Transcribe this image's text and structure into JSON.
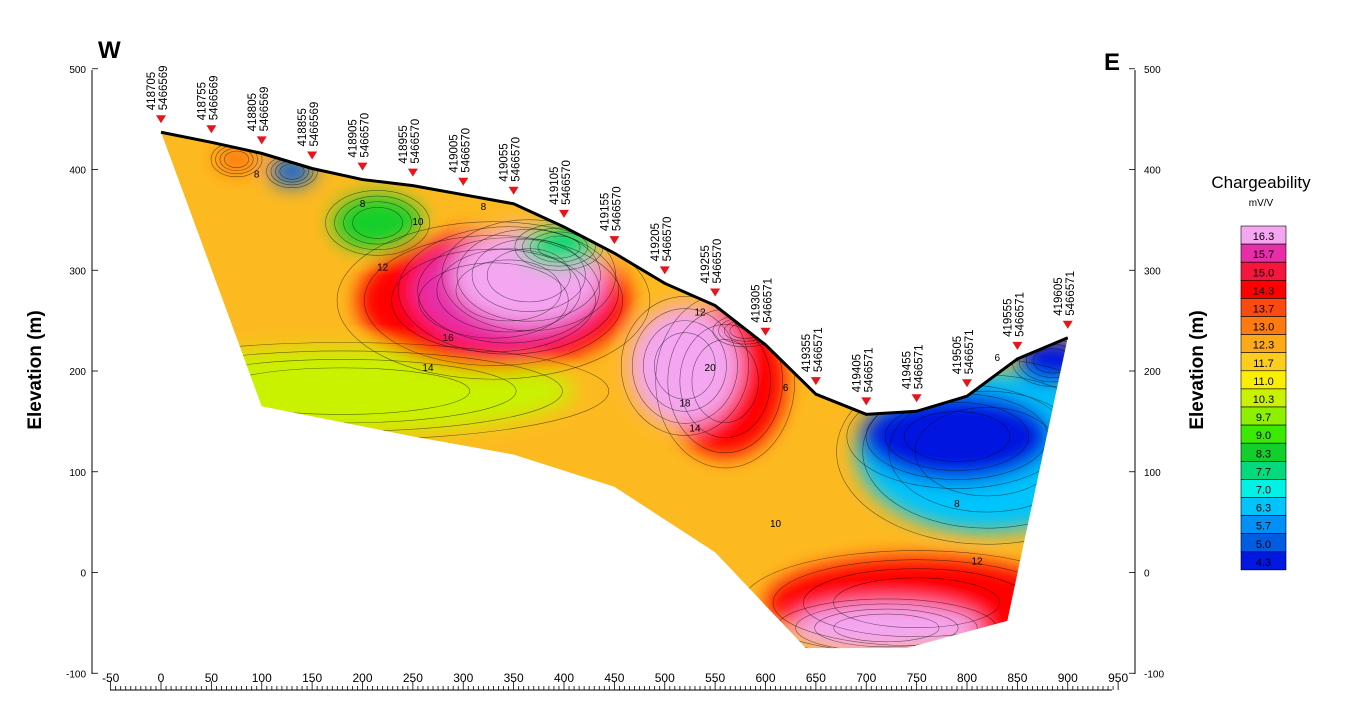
{
  "chart_data": {
    "type": "heatmap",
    "title": "",
    "direction_left": "W",
    "direction_right": "E",
    "ylabel_left": "Elevation (m)",
    "ylabel_right": "Elevation (m)",
    "xlim": [
      -50,
      950
    ],
    "ylim": [
      -100,
      500
    ],
    "x_ticks": [
      -50,
      0,
      50,
      100,
      150,
      200,
      250,
      300,
      350,
      400,
      450,
      500,
      550,
      600,
      650,
      700,
      750,
      800,
      850,
      900,
      950
    ],
    "y_ticks_left": [
      -100,
      0,
      100,
      200,
      300,
      400,
      500
    ],
    "y_ticks_right": [
      -100,
      0,
      100,
      200,
      300,
      400,
      500
    ],
    "surface_profile": [
      {
        "x": 0,
        "y": 437
      },
      {
        "x": 50,
        "y": 427
      },
      {
        "x": 100,
        "y": 416
      },
      {
        "x": 150,
        "y": 401
      },
      {
        "x": 200,
        "y": 390
      },
      {
        "x": 250,
        "y": 384
      },
      {
        "x": 300,
        "y": 375
      },
      {
        "x": 350,
        "y": 366
      },
      {
        "x": 400,
        "y": 343
      },
      {
        "x": 450,
        "y": 317
      },
      {
        "x": 500,
        "y": 287
      },
      {
        "x": 550,
        "y": 265
      },
      {
        "x": 600,
        "y": 226
      },
      {
        "x": 650,
        "y": 177
      },
      {
        "x": 700,
        "y": 157
      },
      {
        "x": 750,
        "y": 160
      },
      {
        "x": 800,
        "y": 175
      },
      {
        "x": 850,
        "y": 212
      },
      {
        "x": 900,
        "y": 233
      }
    ],
    "stations": [
      {
        "x": 0,
        "easting": "418705",
        "northing": "5466569"
      },
      {
        "x": 50,
        "easting": "418755",
        "northing": "5466569"
      },
      {
        "x": 100,
        "easting": "418805",
        "northing": "5466569"
      },
      {
        "x": 150,
        "easting": "418855",
        "northing": "5466569"
      },
      {
        "x": 200,
        "easting": "418905",
        "northing": "5466570"
      },
      {
        "x": 250,
        "easting": "418955",
        "northing": "5466570"
      },
      {
        "x": 300,
        "easting": "419005",
        "northing": "5466570"
      },
      {
        "x": 350,
        "easting": "419055",
        "northing": "5466570"
      },
      {
        "x": 400,
        "easting": "419105",
        "northing": "5466570"
      },
      {
        "x": 450,
        "easting": "419155",
        "northing": "5466570"
      },
      {
        "x": 500,
        "easting": "419205",
        "northing": "5466570"
      },
      {
        "x": 550,
        "easting": "419255",
        "northing": "5466570"
      },
      {
        "x": 600,
        "easting": "419305",
        "northing": "5466571"
      },
      {
        "x": 650,
        "easting": "419355",
        "northing": "5466571"
      },
      {
        "x": 700,
        "easting": "419405",
        "northing": "5466571"
      },
      {
        "x": 750,
        "easting": "419455",
        "northing": "5466571"
      },
      {
        "x": 800,
        "easting": "419505",
        "northing": "5466571"
      },
      {
        "x": 850,
        "easting": "419555",
        "northing": "5466571"
      },
      {
        "x": 900,
        "easting": "419605",
        "northing": "5466571"
      }
    ],
    "section_bottom": [
      {
        "x": 100,
        "y": 165
      },
      {
        "x": 250,
        "y": 135
      },
      {
        "x": 350,
        "y": 117
      },
      {
        "x": 450,
        "y": 85
      },
      {
        "x": 550,
        "y": 20
      },
      {
        "x": 640,
        "y": -75
      },
      {
        "x": 740,
        "y": -75
      },
      {
        "x": 840,
        "y": -48
      }
    ],
    "anomalies": [
      {
        "x": 180,
        "y": 180,
        "rx": 230,
        "ry": 42,
        "value": 10.3
      },
      {
        "x": 330,
        "y": 270,
        "rx": 135,
        "ry": 68,
        "value": 14.3
      },
      {
        "x": 345,
        "y": 280,
        "rx": 95,
        "ry": 55,
        "value": 15.7
      },
      {
        "x": 365,
        "y": 295,
        "rx": 75,
        "ry": 48,
        "value": 16.3
      },
      {
        "x": 215,
        "y": 347,
        "rx": 45,
        "ry": 28,
        "value": 8.3
      },
      {
        "x": 75,
        "y": 410,
        "rx": 22,
        "ry": 15,
        "value": 13.0
      },
      {
        "x": 130,
        "y": 398,
        "rx": 22,
        "ry": 14,
        "value": 5.0
      },
      {
        "x": 395,
        "y": 323,
        "rx": 38,
        "ry": 20,
        "value": 7.7
      },
      {
        "x": 580,
        "y": 240,
        "rx": 28,
        "ry": 14,
        "value": 5.0
      },
      {
        "x": 560,
        "y": 190,
        "rx": 60,
        "ry": 75,
        "value": 14.3
      },
      {
        "x": 520,
        "y": 205,
        "rx": 55,
        "ry": 60,
        "value": 16.3
      },
      {
        "x": 820,
        "y": 120,
        "rx": 130,
        "ry": 80,
        "value": 6.3
      },
      {
        "x": 790,
        "y": 135,
        "rx": 95,
        "ry": 45,
        "value": 4.3
      },
      {
        "x": 885,
        "y": 210,
        "rx": 35,
        "ry": 22,
        "value": 4.3
      },
      {
        "x": 750,
        "y": -30,
        "rx": 150,
        "ry": 45,
        "value": 14.3
      },
      {
        "x": 720,
        "y": -55,
        "rx": 95,
        "ry": 25,
        "value": 16.3
      }
    ],
    "contour_labels": [
      {
        "x": 95,
        "y": 392,
        "text": "8"
      },
      {
        "x": 200,
        "y": 363,
        "text": "8"
      },
      {
        "x": 255,
        "y": 345,
        "text": "10"
      },
      {
        "x": 220,
        "y": 300,
        "text": "12"
      },
      {
        "x": 285,
        "y": 230,
        "text": "16"
      },
      {
        "x": 265,
        "y": 200,
        "text": "14"
      },
      {
        "x": 320,
        "y": 360,
        "text": "8"
      },
      {
        "x": 535,
        "y": 255,
        "text": "12"
      },
      {
        "x": 545,
        "y": 200,
        "text": "20"
      },
      {
        "x": 520,
        "y": 165,
        "text": "18"
      },
      {
        "x": 530,
        "y": 140,
        "text": "14"
      },
      {
        "x": 620,
        "y": 180,
        "text": "6"
      },
      {
        "x": 610,
        "y": 45,
        "text": "10"
      },
      {
        "x": 830,
        "y": 210,
        "text": "6"
      },
      {
        "x": 790,
        "y": 65,
        "text": "8"
      },
      {
        "x": 810,
        "y": 8,
        "text": "12"
      }
    ],
    "legend": {
      "title": "Chargeability",
      "unit": "mV/V",
      "placement": "right",
      "levels": [
        "16.3",
        "15.7",
        "15.0",
        "14.3",
        "13.7",
        "13.0",
        "12.3",
        "11.7",
        "11.0",
        "10.3",
        "9.7",
        "9.0",
        "8.3",
        "7.7",
        "7.0",
        "6.3",
        "5.7",
        "5.0",
        "4.3"
      ],
      "colors": [
        "#f4a6f0",
        "#e62ea8",
        "#f4163c",
        "#fe0000",
        "#fb4a10",
        "#fc7a10",
        "#fdaa1a",
        "#fdcd1e",
        "#fbef00",
        "#c9f200",
        "#8ef000",
        "#3bea00",
        "#12cf2c",
        "#05d97e",
        "#00f2e4",
        "#00c4fb",
        "#0090f8",
        "#005ce0",
        "#0018e0"
      ]
    },
    "grid": false
  }
}
